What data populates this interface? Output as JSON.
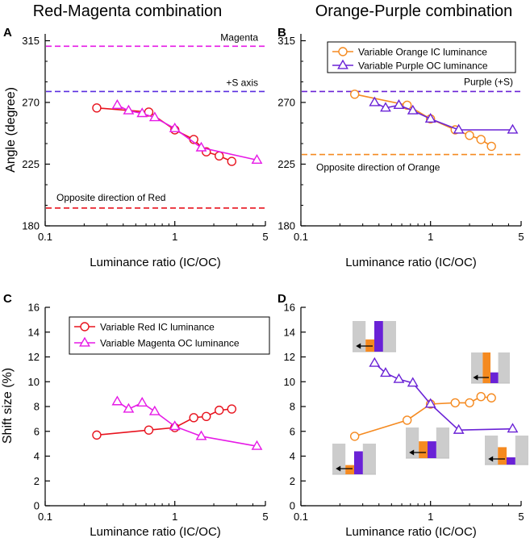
{
  "column_titles": [
    "Red-Magenta combination",
    "Orange-Purple combination"
  ],
  "colors": {
    "red": "#e8131e",
    "magenta": "#e619e6",
    "orange": "#f58a20",
    "purple": "#6a22d6",
    "blue_dash": "#5a2ee0",
    "gray": "#cccccc"
  },
  "chart_data": [
    {
      "panel": "A",
      "type": "line",
      "title": "Red-Magenta combination",
      "xlabel": "Luminance ratio (IC/OC)",
      "ylabel": "Angle (degree)",
      "xscale": "log",
      "xlim": [
        0.1,
        5
      ],
      "ylim": [
        180,
        320
      ],
      "xticks": [
        0.1,
        1,
        5
      ],
      "xtick_labels": [
        "0.1",
        "1",
        "5"
      ],
      "yticks": [
        180,
        225,
        270,
        315
      ],
      "ytick_labels": [
        "180",
        "225",
        "270",
        "315"
      ],
      "reference_lines": [
        {
          "y": 311,
          "color": "#e619e6",
          "label": "Magenta"
        },
        {
          "y": 278,
          "color": "#5a2ee0",
          "label": "+S axis"
        },
        {
          "y": 193,
          "color": "#e8131e",
          "label": "Opposite direction of Red"
        }
      ],
      "series": [
        {
          "name": "Variable Red IC luminance",
          "color": "#e8131e",
          "marker": "circle",
          "x": [
            0.25,
            0.63,
            1.0,
            1.4,
            1.75,
            2.2,
            2.75
          ],
          "y": [
            266,
            263,
            250,
            243,
            234,
            231,
            227
          ]
        },
        {
          "name": "Variable Magenta OC luminance",
          "color": "#e619e6",
          "marker": "triangle",
          "x": [
            0.36,
            0.44,
            0.56,
            0.7,
            1.0,
            1.6,
            4.3
          ],
          "y": [
            268,
            264,
            262,
            259,
            251,
            237,
            228
          ]
        }
      ]
    },
    {
      "panel": "B",
      "type": "line",
      "title": "Orange-Purple combination",
      "xlabel": "Luminance ratio (IC/OC)",
      "ylabel": "",
      "xscale": "log",
      "xlim": [
        0.1,
        5
      ],
      "ylim": [
        180,
        320
      ],
      "xticks": [
        0.1,
        1,
        5
      ],
      "xtick_labels": [
        "0.1",
        "1",
        "5"
      ],
      "yticks": [
        180,
        225,
        270,
        315
      ],
      "ytick_labels": [
        "180",
        "225",
        "270",
        "315"
      ],
      "legend": "top-right",
      "reference_lines": [
        {
          "y": 278,
          "color": "#6a22d6",
          "label": "Purple (+S)"
        },
        {
          "y": 232,
          "color": "#f58a20",
          "label": "Opposite direction of Orange"
        }
      ],
      "series": [
        {
          "name": "Variable Orange IC luminance",
          "color": "#f58a20",
          "marker": "circle",
          "x": [
            0.26,
            0.66,
            1.0,
            1.55,
            2.0,
            2.45,
            2.95
          ],
          "y": [
            276,
            268,
            258,
            250,
            246,
            243,
            238
          ]
        },
        {
          "name": "Variable Purple OC luminance",
          "color": "#6a22d6",
          "marker": "triangle",
          "x": [
            0.37,
            0.45,
            0.57,
            0.73,
            1.0,
            1.65,
            4.3
          ],
          "y": [
            270,
            266,
            268,
            264,
            258,
            250,
            250
          ]
        }
      ]
    },
    {
      "panel": "C",
      "type": "line",
      "xlabel": "Luminance ratio (IC/OC)",
      "ylabel": "Shift size (%)",
      "xscale": "log",
      "xlim": [
        0.1,
        5
      ],
      "ylim": [
        0,
        16
      ],
      "xticks": [
        0.1,
        1,
        5
      ],
      "xtick_labels": [
        "0.1",
        "1",
        "5"
      ],
      "yticks": [
        0,
        2,
        4,
        6,
        8,
        10,
        12,
        14,
        16
      ],
      "ytick_labels": [
        "0",
        "2",
        "4",
        "6",
        "8",
        "10",
        "12",
        "14",
        "16"
      ],
      "legend": "top-right",
      "series": [
        {
          "name": "Variable Red IC luminance",
          "color": "#e8131e",
          "marker": "circle",
          "x": [
            0.25,
            0.63,
            1.0,
            1.4,
            1.75,
            2.2,
            2.75
          ],
          "y": [
            5.7,
            6.1,
            6.3,
            7.1,
            7.2,
            7.7,
            7.8
          ]
        },
        {
          "name": "Variable Magenta OC luminance",
          "color": "#e619e6",
          "marker": "triangle",
          "x": [
            0.36,
            0.44,
            0.56,
            0.7,
            1.0,
            1.6,
            4.3
          ],
          "y": [
            8.4,
            7.8,
            8.3,
            7.6,
            6.4,
            5.6,
            4.8
          ]
        }
      ]
    },
    {
      "panel": "D",
      "type": "line",
      "xlabel": "Luminance ratio (IC/OC)",
      "ylabel": "",
      "xscale": "log",
      "xlim": [
        0.1,
        5
      ],
      "ylim": [
        0,
        16
      ],
      "xticks": [
        0.1,
        1,
        5
      ],
      "xtick_labels": [
        "0.1",
        "1",
        "5"
      ],
      "yticks": [
        0,
        2,
        4,
        6,
        8,
        10,
        12,
        14,
        16
      ],
      "ytick_labels": [
        "0",
        "2",
        "4",
        "6",
        "8",
        "10",
        "12",
        "14",
        "16"
      ],
      "series": [
        {
          "name": "Variable Orange IC luminance",
          "color": "#f58a20",
          "marker": "circle",
          "x": [
            0.26,
            0.66,
            1.0,
            1.55,
            2.0,
            2.45,
            2.95
          ],
          "y": [
            5.6,
            6.9,
            8.2,
            8.3,
            8.3,
            8.8,
            8.7
          ]
        },
        {
          "name": "Variable Purple OC luminance",
          "color": "#6a22d6",
          "marker": "triangle",
          "x": [
            0.37,
            0.45,
            0.57,
            0.73,
            1.0,
            1.65,
            4.3
          ],
          "y": [
            11.5,
            10.7,
            10.2,
            9.9,
            8.2,
            6.1,
            6.2
          ]
        }
      ],
      "insets": [
        {
          "orange_height": 0.4,
          "purple_height": 1.0
        },
        {
          "orange_height": 1.0,
          "purple_height": 0.35
        },
        {
          "orange_height": 0.55,
          "purple_height": 0.55
        },
        {
          "orange_height": 0.3,
          "purple_height": 0.75
        },
        {
          "orange_height": 0.6,
          "purple_height": 0.25
        }
      ]
    }
  ]
}
